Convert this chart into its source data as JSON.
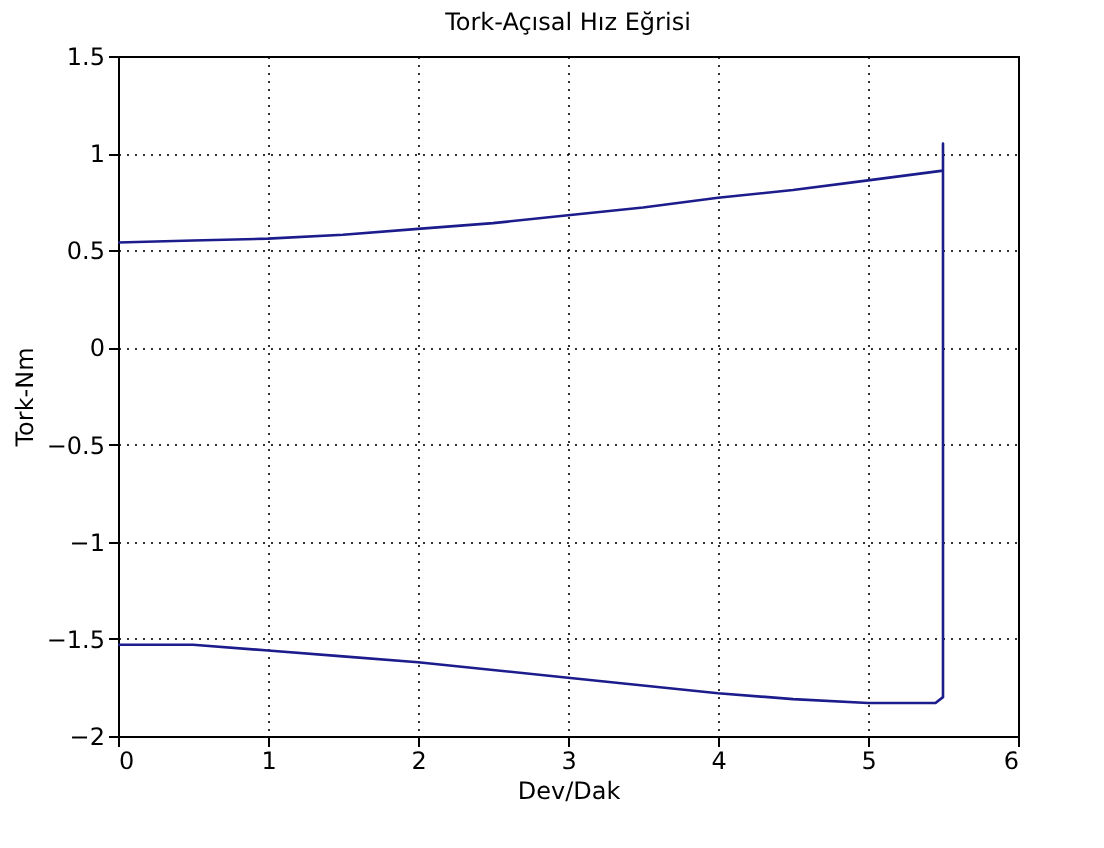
{
  "chart_data": {
    "type": "line",
    "title": "Tork-Açısal Hız Eğrisi",
    "xlabel": "Dev/Dak",
    "ylabel": "Tork-Nm",
    "series": [
      {
        "color": "#1c1c8c",
        "x": [
          0,
          0.5,
          1,
          1.5,
          2,
          2.5,
          3,
          3.5,
          4,
          4.5,
          5,
          5.5,
          5.5,
          5.5,
          5.45,
          5.2,
          5,
          4.5,
          4,
          3.5,
          3,
          2.5,
          2,
          1.5,
          1,
          0.5,
          0
        ],
        "values": [
          0.54,
          0.55,
          0.56,
          0.58,
          0.61,
          0.64,
          0.68,
          0.72,
          0.77,
          0.81,
          0.86,
          0.91,
          1.05,
          -1.8,
          -1.83,
          -1.83,
          -1.83,
          -1.81,
          -1.78,
          -1.74,
          -1.7,
          -1.66,
          -1.62,
          -1.59,
          -1.56,
          -1.53,
          -1.53
        ]
      }
    ],
    "xlim": [
      0,
      6
    ],
    "xticks": [
      0,
      1,
      2,
      3,
      4,
      5,
      6
    ],
    "ylim": [
      -2,
      1.5
    ],
    "yticks": [
      -2,
      -1.5,
      -1,
      -0.5,
      0,
      0.5,
      1,
      1.5
    ],
    "grid": true,
    "legend": false,
    "marker": "none",
    "line_style": "solid"
  }
}
